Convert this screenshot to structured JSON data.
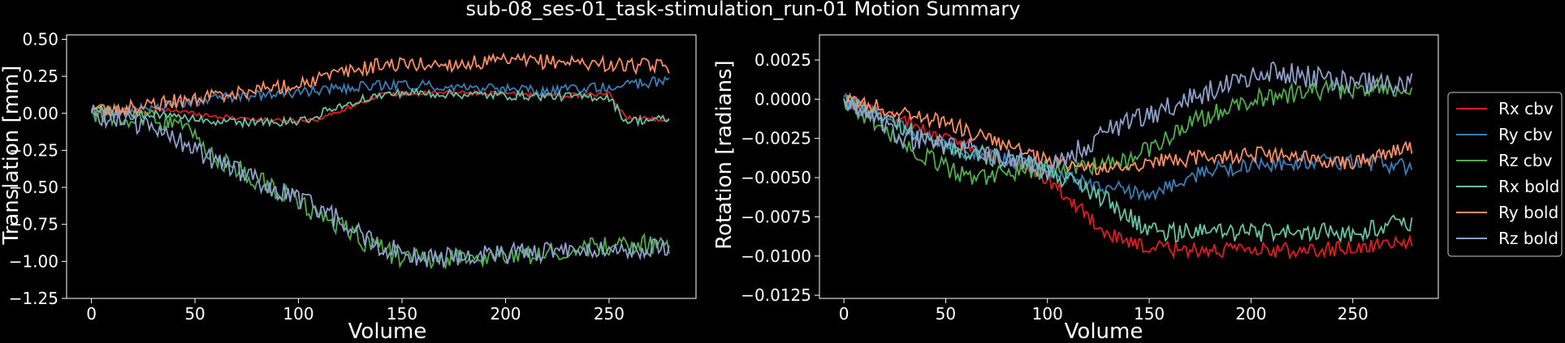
{
  "title": "sub-08_ses-01_task-stimulation_run-01 Motion Summary",
  "chart_data": [
    {
      "type": "line",
      "xlabel": "Volume",
      "ylabel": "Translation [mm]",
      "xlim": [
        -12,
        292
      ],
      "ylim": [
        -1.25,
        0.53
      ],
      "xticks": [
        0,
        50,
        100,
        150,
        200,
        250
      ],
      "yticks": [
        0.5,
        0.25,
        0.0,
        -0.25,
        -0.5,
        -0.75,
        -1.0,
        -1.25
      ],
      "ytick_labels": [
        "0.50",
        "0.25",
        "0.00",
        "−0.25",
        "−0.50",
        "−0.75",
        "−1.00",
        "−1.25"
      ],
      "n_volumes": 280,
      "series": [
        {
          "color": "#e41a1c",
          "knots": [
            [
              0,
              0.0
            ],
            [
              40,
              0.02
            ],
            [
              60,
              -0.02
            ],
            [
              90,
              -0.05
            ],
            [
              110,
              -0.04
            ],
            [
              140,
              0.13
            ],
            [
              180,
              0.14
            ],
            [
              230,
              0.12
            ],
            [
              250,
              0.13
            ],
            [
              258,
              -0.03
            ],
            [
              278,
              -0.04
            ]
          ],
          "noise": 0.015
        },
        {
          "color": "#377eb8",
          "knots": [
            [
              0,
              0.0
            ],
            [
              30,
              0.04
            ],
            [
              60,
              0.1
            ],
            [
              100,
              0.14
            ],
            [
              130,
              0.18
            ],
            [
              150,
              0.2
            ],
            [
              180,
              0.17
            ],
            [
              220,
              0.15
            ],
            [
              250,
              0.18
            ],
            [
              278,
              0.22
            ]
          ],
          "noise": 0.035
        },
        {
          "color": "#4daf4a",
          "knots": [
            [
              0,
              0.0
            ],
            [
              40,
              -0.05
            ],
            [
              60,
              -0.3
            ],
            [
              80,
              -0.45
            ],
            [
              100,
              -0.6
            ],
            [
              130,
              -0.85
            ],
            [
              150,
              -0.98
            ],
            [
              180,
              -0.98
            ],
            [
              210,
              -0.95
            ],
            [
              250,
              -0.9
            ],
            [
              278,
              -0.88
            ]
          ],
          "noise": 0.07
        },
        {
          "color": "#66c2a5",
          "knots": [
            [
              0,
              0.02
            ],
            [
              40,
              -0.02
            ],
            [
              60,
              -0.06
            ],
            [
              100,
              -0.06
            ],
            [
              130,
              0.1
            ],
            [
              150,
              0.14
            ],
            [
              200,
              0.12
            ],
            [
              250,
              0.11
            ],
            [
              258,
              -0.05
            ],
            [
              278,
              -0.04
            ]
          ],
          "noise": 0.03
        },
        {
          "color": "#fc8d62",
          "knots": [
            [
              0,
              0.0
            ],
            [
              30,
              0.06
            ],
            [
              60,
              0.12
            ],
            [
              100,
              0.2
            ],
            [
              120,
              0.27
            ],
            [
              140,
              0.33
            ],
            [
              170,
              0.33
            ],
            [
              200,
              0.35
            ],
            [
              230,
              0.35
            ],
            [
              260,
              0.32
            ],
            [
              278,
              0.32
            ]
          ],
          "noise": 0.05
        },
        {
          "color": "#8da0cb",
          "knots": [
            [
              0,
              0.0
            ],
            [
              30,
              -0.1
            ],
            [
              50,
              -0.25
            ],
            [
              80,
              -0.45
            ],
            [
              100,
              -0.58
            ],
            [
              120,
              -0.72
            ],
            [
              140,
              -0.9
            ],
            [
              160,
              -0.98
            ],
            [
              200,
              -0.95
            ],
            [
              240,
              -0.9
            ],
            [
              278,
              -0.92
            ]
          ],
          "noise": 0.07
        }
      ]
    },
    {
      "type": "line",
      "xlabel": "Volume",
      "ylabel": "Rotation [radians]",
      "xlim": [
        -12,
        292
      ],
      "ylim": [
        -0.0127,
        0.0041
      ],
      "xticks": [
        0,
        50,
        100,
        150,
        200,
        250
      ],
      "yticks": [
        0.0025,
        0.0,
        -0.0025,
        -0.005,
        -0.0075,
        -0.01,
        -0.0125
      ],
      "ytick_labels": [
        "0.0025",
        "0.0000",
        "−0.0025",
        "−0.0050",
        "−0.0075",
        "−0.0100",
        "−0.0125"
      ],
      "n_volumes": 280,
      "legend": {
        "placement": "right-outside",
        "labels": [
          "Rx cbv",
          "Ry cbv",
          "Rz cbv",
          "Rx bold",
          "Ry bold",
          "Rz bold"
        ]
      },
      "series": [
        {
          "name": "Rx cbv",
          "color": "#e41a1c",
          "knots": [
            [
              0,
              0.0
            ],
            [
              50,
              -0.0025
            ],
            [
              100,
              -0.005
            ],
            [
              120,
              -0.0075
            ],
            [
              135,
              -0.009
            ],
            [
              150,
              -0.0095
            ],
            [
              200,
              -0.0097
            ],
            [
              250,
              -0.0095
            ],
            [
              278,
              -0.009
            ]
          ],
          "noise": 0.0005
        },
        {
          "name": "Ry cbv",
          "color": "#377eb8",
          "knots": [
            [
              0,
              0.0
            ],
            [
              50,
              -0.003
            ],
            [
              100,
              -0.0045
            ],
            [
              120,
              -0.0055
            ],
            [
              150,
              -0.006
            ],
            [
              180,
              -0.0045
            ],
            [
              220,
              -0.004
            ],
            [
              250,
              -0.004
            ],
            [
              278,
              -0.0043
            ]
          ],
          "noise": 0.0005
        },
        {
          "name": "Rz cbv",
          "color": "#4daf4a",
          "knots": [
            [
              0,
              0.0
            ],
            [
              30,
              -0.003
            ],
            [
              60,
              -0.005
            ],
            [
              100,
              -0.0045
            ],
            [
              140,
              -0.004
            ],
            [
              170,
              -0.0015
            ],
            [
              200,
              0.0
            ],
            [
              230,
              0.0005
            ],
            [
              278,
              0.0008
            ]
          ],
          "noise": 0.0006
        },
        {
          "name": "Rx bold",
          "color": "#66c2a5",
          "knots": [
            [
              0,
              0.0
            ],
            [
              50,
              -0.003
            ],
            [
              100,
              -0.0045
            ],
            [
              130,
              -0.0065
            ],
            [
              150,
              -0.0085
            ],
            [
              200,
              -0.0085
            ],
            [
              250,
              -0.0085
            ],
            [
              278,
              -0.0078
            ]
          ],
          "noise": 0.0006
        },
        {
          "name": "Ry bold",
          "color": "#fc8d62",
          "knots": [
            [
              0,
              0.0
            ],
            [
              50,
              -0.0015
            ],
            [
              100,
              -0.004
            ],
            [
              130,
              -0.0045
            ],
            [
              150,
              -0.004
            ],
            [
              200,
              -0.0035
            ],
            [
              250,
              -0.004
            ],
            [
              278,
              -0.003
            ]
          ],
          "noise": 0.0005
        },
        {
          "name": "Rz bold",
          "color": "#8da0cb",
          "knots": [
            [
              0,
              0.0
            ],
            [
              30,
              -0.0025
            ],
            [
              60,
              -0.003
            ],
            [
              100,
              -0.0045
            ],
            [
              130,
              -0.002
            ],
            [
              150,
              -0.001
            ],
            [
              180,
              0.0005
            ],
            [
              210,
              0.0018
            ],
            [
              250,
              0.001
            ],
            [
              278,
              0.001
            ]
          ],
          "noise": 0.0007
        }
      ]
    }
  ]
}
